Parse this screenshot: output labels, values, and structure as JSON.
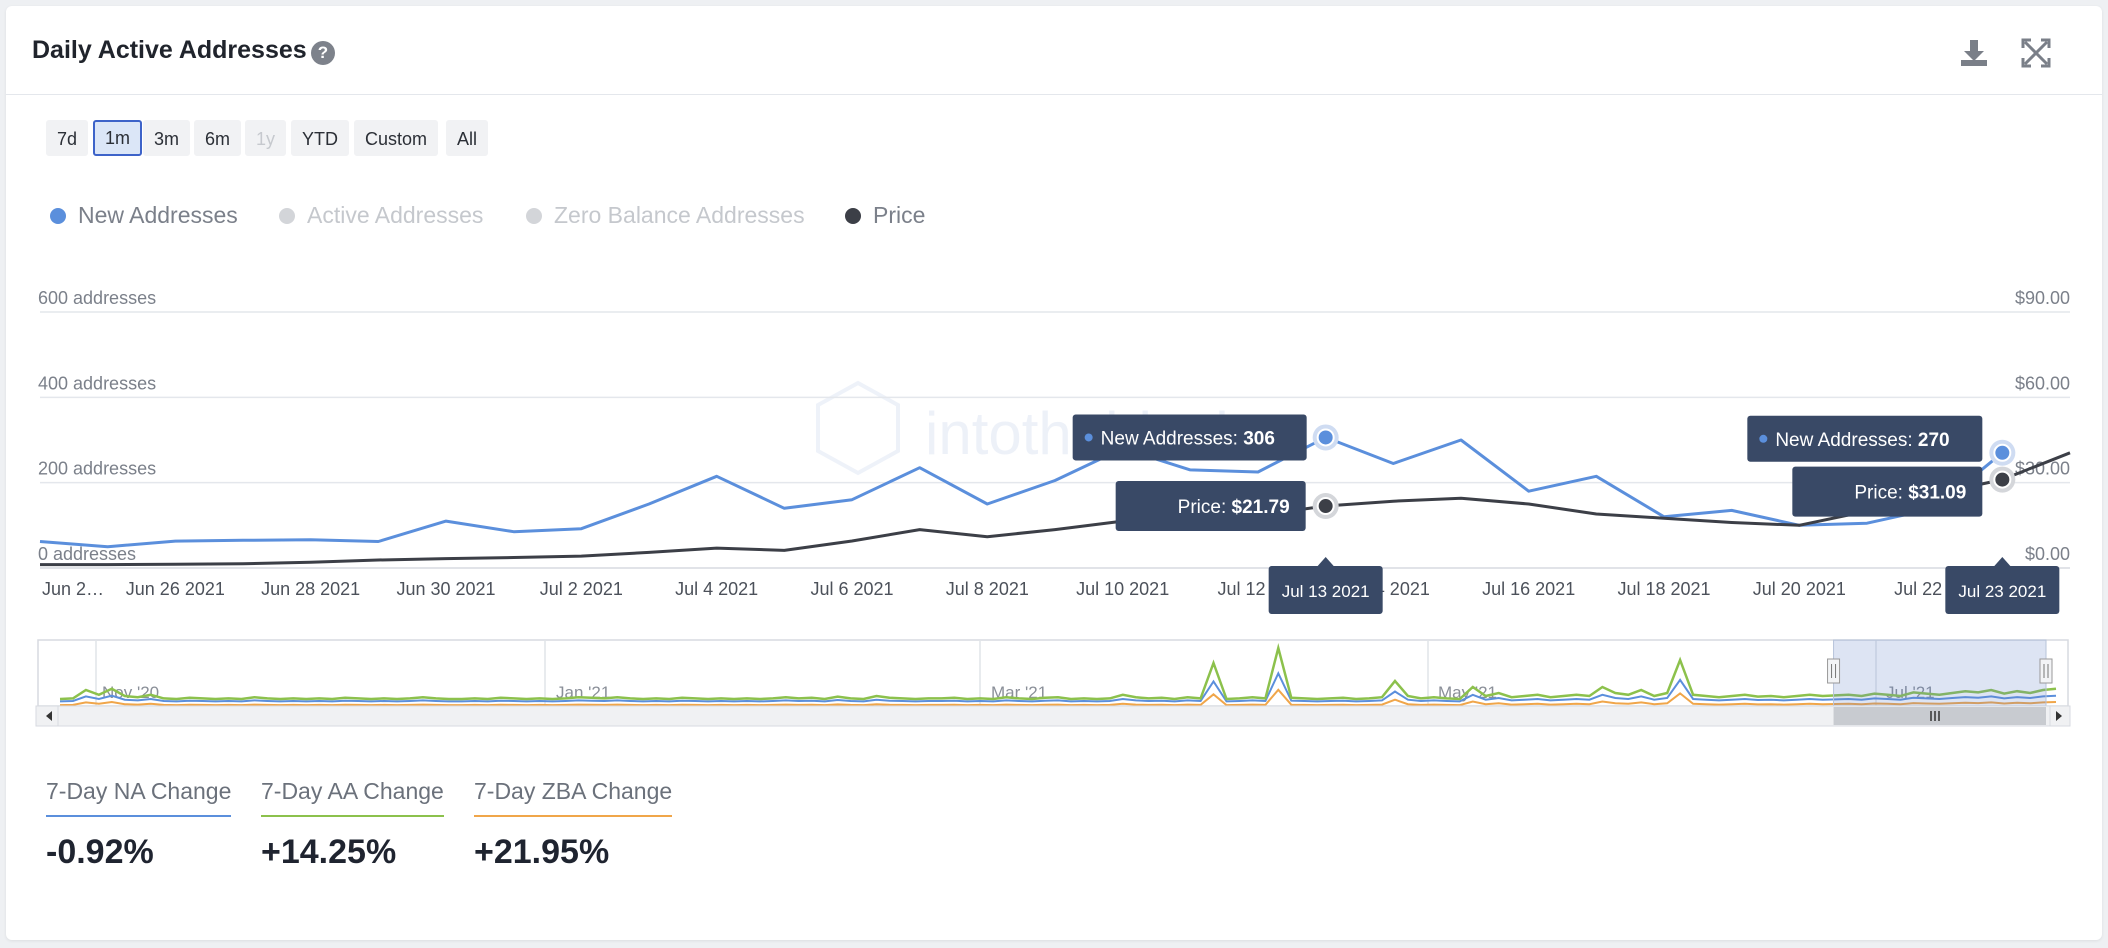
{
  "header": {
    "title": "Daily Active Addresses",
    "help_glyph": "?",
    "download_icon": "download-icon",
    "fullscreen_icon": "fullscreen-icon"
  },
  "range_buttons": [
    {
      "label": "7d",
      "state": "normal"
    },
    {
      "label": "1m",
      "state": "active"
    },
    {
      "label": "3m",
      "state": "normal"
    },
    {
      "label": "6m",
      "state": "normal"
    },
    {
      "label": "1y",
      "state": "disabled"
    },
    {
      "label": "YTD",
      "state": "normal"
    },
    {
      "label": "Custom",
      "state": "normal"
    },
    {
      "label": "All",
      "state": "normal"
    }
  ],
  "legend": [
    {
      "label": "New Addresses",
      "color": "#5b8fdc",
      "enabled": true
    },
    {
      "label": "Active Addresses",
      "color": "#d3d5d9",
      "enabled": false
    },
    {
      "label": "Zero Balance Addresses",
      "color": "#d3d5d9",
      "enabled": false
    },
    {
      "label": "Price",
      "color": "#3c3f47",
      "enabled": true
    }
  ],
  "watermark": "intotheblock",
  "chart_data": {
    "type": "line",
    "x": [
      "Jun 24 2021",
      "Jun 25 2021",
      "Jun 26 2021",
      "Jun 27 2021",
      "Jun 28 2021",
      "Jun 29 2021",
      "Jun 30 2021",
      "Jul 1 2021",
      "Jul 2 2021",
      "Jul 3 2021",
      "Jul 4 2021",
      "Jul 5 2021",
      "Jul 6 2021",
      "Jul 7 2021",
      "Jul 8 2021",
      "Jul 9 2021",
      "Jul 10 2021",
      "Jul 11 2021",
      "Jul 12 2021",
      "Jul 13 2021",
      "Jul 14 2021",
      "Jul 15 2021",
      "Jul 16 2021",
      "Jul 17 2021",
      "Jul 18 2021",
      "Jul 19 2021",
      "Jul 20 2021",
      "Jul 21 2021",
      "Jul 22 2021",
      "Jul 23 2021",
      "Jul 24 2021"
    ],
    "x_tick_labels": [
      "Jun 2…",
      "Jun 26 2021",
      "Jun 28 2021",
      "Jun 30 2021",
      "Jul 2 2021",
      "Jul 4 2021",
      "Jul 6 2021",
      "Jul 8 2021",
      "Jul 10 2021",
      "Jul 12 2…",
      "…4 2021",
      "Jul 16 2021",
      "Jul 18 2021",
      "Jul 20 2021",
      "Jul 22 2…"
    ],
    "series": [
      {
        "name": "New Addresses",
        "axis": "left",
        "color": "#5b8fdc",
        "values": [
          62,
          50,
          63,
          65,
          66,
          62,
          110,
          85,
          92,
          150,
          215,
          140,
          160,
          235,
          150,
          205,
          280,
          230,
          225,
          306,
          245,
          300,
          180,
          215,
          120,
          135,
          100,
          105,
          140,
          270,
          null
        ]
      },
      {
        "name": "Price",
        "axis": "right",
        "color": "#3c3f47",
        "values": [
          1.2,
          1.2,
          1.3,
          1.5,
          2.0,
          2.8,
          3.3,
          3.7,
          4.2,
          5.5,
          7.0,
          6.2,
          9.5,
          13.5,
          11.0,
          13.5,
          16.5,
          17.0,
          18.5,
          21.79,
          23.5,
          24.5,
          22.5,
          19.0,
          17.5,
          16.0,
          15.0,
          20.0,
          26.0,
          31.09,
          40.5
        ]
      }
    ],
    "y_left": {
      "min": 0,
      "max": 600,
      "ticks": [
        0,
        200,
        400,
        600
      ],
      "tick_labels": [
        "0 addresses",
        "200 addresses",
        "400 addresses",
        "600 addresses"
      ]
    },
    "y_right": {
      "min": 0,
      "max": 90,
      "ticks": [
        0,
        30,
        60,
        90
      ],
      "tick_labels": [
        "$0.00",
        "$30.00",
        "$60.00",
        "$90.00"
      ]
    },
    "grid": true,
    "tooltips": [
      {
        "date_index": 19,
        "date_label": "Jul 13 2021",
        "new_addresses_label": "New Addresses: ",
        "new_addresses_value": "306",
        "price_label": "Price: ",
        "price_value": "$21.79"
      },
      {
        "date_index": 29,
        "date_label": "Jul 23 2021",
        "new_addresses_label": "New Addresses: ",
        "new_addresses_value": "270",
        "price_label": "Price: ",
        "price_value": "$31.09"
      }
    ],
    "navigator": {
      "labels": [
        "Nov '20",
        "Jan '21",
        "Mar '21",
        "May '21",
        "Jul '21"
      ],
      "series_colors": {
        "active": "#8cc14c",
        "new": "#5b8fdc",
        "zero_balance": "#f0a64a"
      },
      "active_values": [
        0.05,
        0.06,
        0.2,
        0.12,
        0.22,
        0.1,
        0.08,
        0.12,
        0.06,
        0.05,
        0.07,
        0.06,
        0.05,
        0.06,
        0.05,
        0.08,
        0.06,
        0.05,
        0.06,
        0.05,
        0.06,
        0.05,
        0.07,
        0.06,
        0.05,
        0.06,
        0.05,
        0.06,
        0.08,
        0.06,
        0.05,
        0.05,
        0.06,
        0.05,
        0.07,
        0.06,
        0.05,
        0.06,
        0.05,
        0.06,
        0.08,
        0.07,
        0.06,
        0.08,
        0.06,
        0.05,
        0.06,
        0.05,
        0.07,
        0.06,
        0.05,
        0.06,
        0.05,
        0.06,
        0.05,
        0.06,
        0.08,
        0.06,
        0.07,
        0.05,
        0.09,
        0.06,
        0.05,
        0.1,
        0.07,
        0.06,
        0.05,
        0.06,
        0.06,
        0.07,
        0.05,
        0.06,
        0.05,
        0.08,
        0.06,
        0.05,
        0.07,
        0.08,
        0.05,
        0.06,
        0.05,
        0.06,
        0.12,
        0.08,
        0.06,
        0.07,
        0.05,
        0.08,
        0.06,
        0.65,
        0.05,
        0.06,
        0.08,
        0.06,
        0.9,
        0.07,
        0.06,
        0.05,
        0.06,
        0.07,
        0.05,
        0.06,
        0.08,
        0.35,
        0.1,
        0.06,
        0.08,
        0.06,
        0.05,
        0.25,
        0.1,
        0.15,
        0.08,
        0.1,
        0.12,
        0.08,
        0.1,
        0.12,
        0.1,
        0.25,
        0.15,
        0.12,
        0.2,
        0.1,
        0.15,
        0.7,
        0.12,
        0.1,
        0.08,
        0.1,
        0.12,
        0.09,
        0.1,
        0.08,
        0.1,
        0.12,
        0.1,
        0.11,
        0.12,
        0.1,
        0.14,
        0.12,
        0.1,
        0.16,
        0.14,
        0.12,
        0.15,
        0.18,
        0.16,
        0.2,
        0.14,
        0.18,
        0.15,
        0.2,
        0.22
      ],
      "window_start_fraction": 0.885
    }
  },
  "stats": [
    {
      "label": "7-Day NA Change",
      "value": "-0.92%",
      "color": "#5b8fdc"
    },
    {
      "label": "7-Day AA Change",
      "value": "+14.25%",
      "color": "#8cc14c"
    },
    {
      "label": "7-Day ZBA Change",
      "value": "+21.95%",
      "color": "#f0a64a"
    }
  ]
}
